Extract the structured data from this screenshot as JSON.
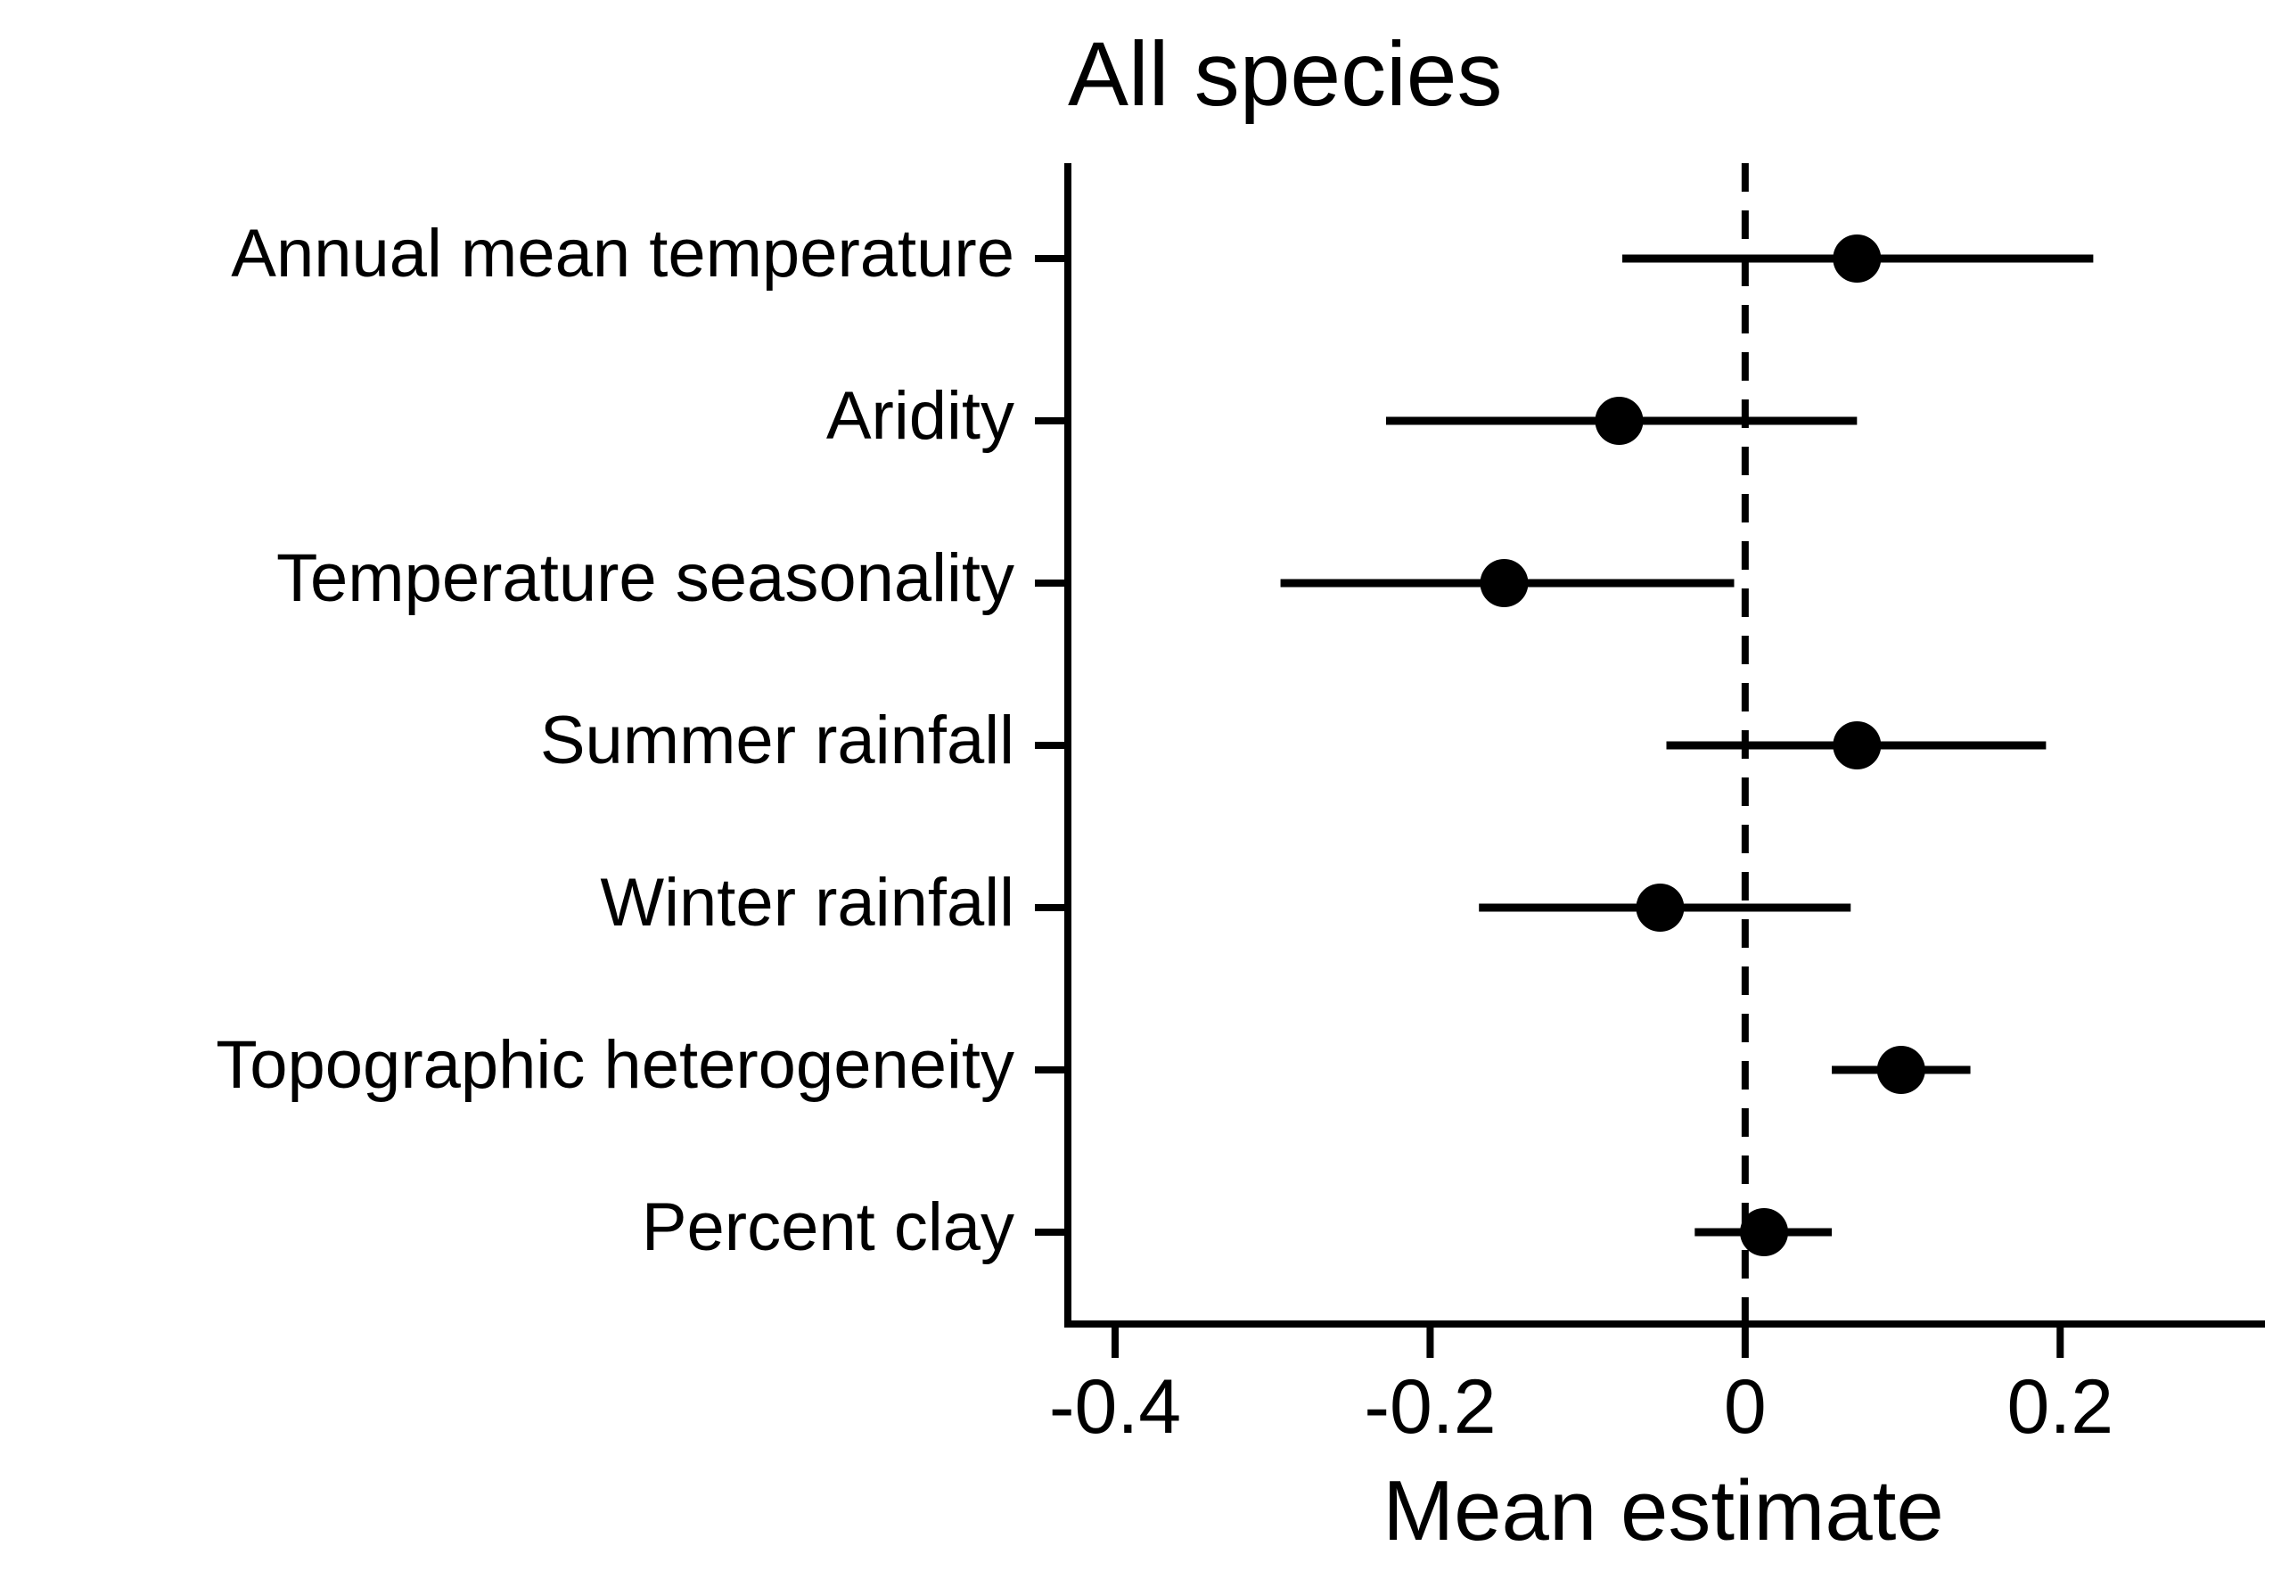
{
  "chart_data": {
    "type": "scatter",
    "subtype": "forest-plot",
    "title": "All species",
    "xlabel": "Mean estimate",
    "ylabel": "",
    "xlim": [
      -0.43,
      0.33
    ],
    "xticks": [
      -0.4,
      -0.2,
      0,
      0.2
    ],
    "xtick_labels": [
      "-0.4",
      "-0.2",
      "0",
      "0.2"
    ],
    "reference_line": {
      "x": 0,
      "style": "dashed"
    },
    "grid": false,
    "legend": "none",
    "color": "#000000",
    "categories": [
      "Annual mean temperature",
      "Aridity",
      "Temperature seasonality",
      "Summer rainfall",
      "Winter rainfall",
      "Topographic heterogeneity",
      "Percent clay"
    ],
    "estimates": [
      0.071,
      -0.08,
      -0.153,
      0.071,
      -0.054,
      0.099,
      0.012
    ],
    "lower": [
      -0.078,
      -0.228,
      -0.295,
      -0.05,
      -0.169,
      0.055,
      -0.032
    ],
    "upper": [
      0.221,
      0.071,
      -0.007,
      0.191,
      0.067,
      0.143,
      0.055
    ]
  }
}
